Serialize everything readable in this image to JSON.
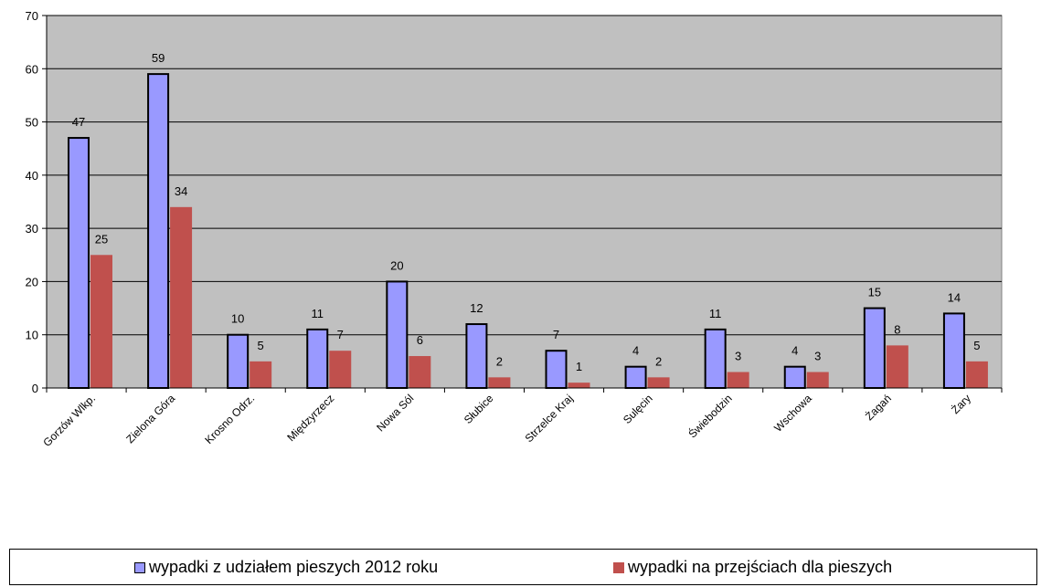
{
  "chart_data": {
    "type": "bar",
    "categories": [
      "Gorzów Wlkp.",
      "Zielona Góra",
      "Krosno Odrz.",
      "Międzyrzecz",
      "Nowa Sól",
      "Słubice",
      "Strzelce Kraj",
      "Sulęcin",
      "Świebodzin",
      "Wschowa",
      "Żagań",
      "Żary"
    ],
    "series": [
      {
        "name": "wypadki z udziałem pieszych 2012 roku",
        "values": [
          47,
          59,
          10,
          11,
          20,
          12,
          7,
          4,
          11,
          4,
          15,
          14
        ],
        "color": "#9999ff",
        "border": "#000000"
      },
      {
        "name": "wypadki na przejściach dla pieszych",
        "values": [
          25,
          34,
          5,
          7,
          6,
          2,
          1,
          2,
          3,
          3,
          8,
          5
        ],
        "color": "#c0504d",
        "border": "#c0504d"
      }
    ],
    "yticks": [
      "0",
      "10",
      "20",
      "30",
      "40",
      "50",
      "60",
      "70"
    ],
    "ylim": [
      0,
      70
    ],
    "plot_background": "#c0c0c0",
    "grid": true,
    "legend_position": "bottom"
  }
}
